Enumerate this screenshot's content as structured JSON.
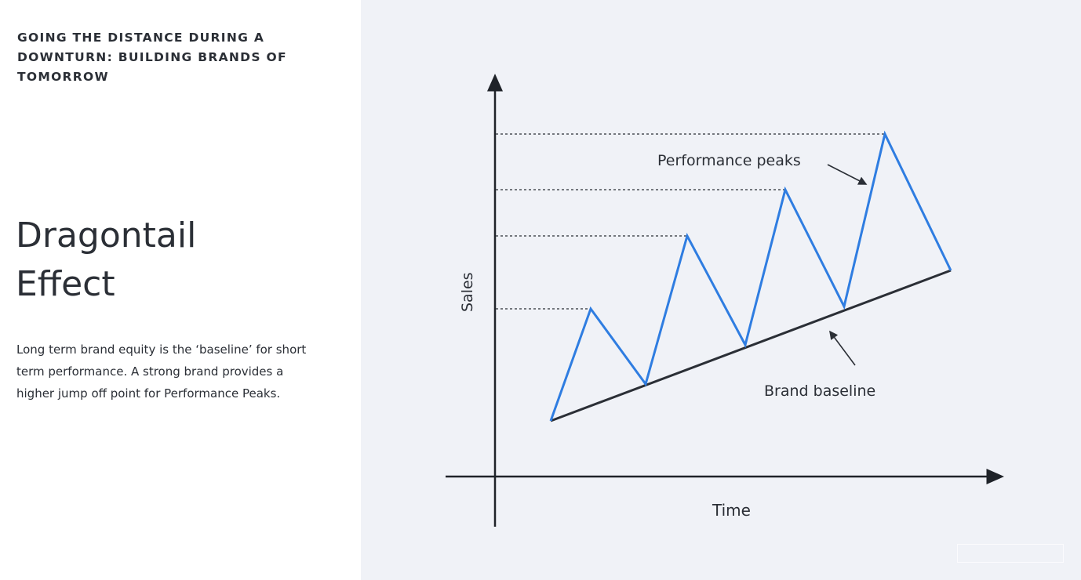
{
  "slide": {
    "eyebrow": "GOING THE DISTANCE DURING A DOWNTURN: BUILDING BRANDS OF TOMORROW",
    "title_line1": "Dragontail",
    "title_line2": "Effect",
    "body": "Long term brand equity is the ‘baseline’ for short term performance. A strong brand provides a higher jump off point for Performance Peaks."
  },
  "diagram": {
    "y_axis_label": "Sales",
    "x_axis_label": "Time",
    "peaks_label": "Performance peaks",
    "baseline_label": "Brand baseline",
    "line_color": "#2f7de1",
    "baseline_color": "#2b2f36"
  },
  "watermark": {
    "text": ""
  }
}
